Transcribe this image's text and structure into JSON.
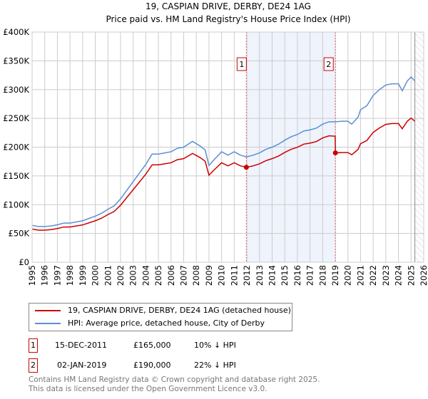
{
  "chart_data": {
    "type": "line",
    "title": "19, CASPIAN DRIVE, DERBY, DE24 1AG",
    "subtitle": "Price paid vs. HM Land Registry's House Price Index (HPI)",
    "xlim": [
      1995,
      2026
    ],
    "ylim": [
      0,
      400000
    ],
    "x_ticks": [
      "1995",
      "1996",
      "1997",
      "1998",
      "1999",
      "2000",
      "2001",
      "2002",
      "2003",
      "2004",
      "2005",
      "2006",
      "2007",
      "2008",
      "2009",
      "2010",
      "2011",
      "2012",
      "2013",
      "2014",
      "2015",
      "2016",
      "2017",
      "2018",
      "2019",
      "2020",
      "2021",
      "2022",
      "2023",
      "2024",
      "2025",
      "2026"
    ],
    "y_ticks": [
      "£0",
      "£50K",
      "£100K",
      "£150K",
      "£200K",
      "£250K",
      "£300K",
      "£350K",
      "£400K"
    ],
    "grid": true,
    "forecast_hatch_from": 2025.3,
    "shaded_range": [
      2011.96,
      2019.0
    ],
    "series": [
      {
        "name": "19, CASPIAN DRIVE, DERBY, DE24 1AG (detached house)",
        "color": "#cc0000",
        "x": [
          1995,
          1995.5,
          1996,
          1996.5,
          1997,
          1997.5,
          1998,
          1998.5,
          1999,
          1999.5,
          2000,
          2000.5,
          2001,
          2001.5,
          2002,
          2002.5,
          2003,
          2003.5,
          2004,
          2004.5,
          2005,
          2005.5,
          2006,
          2006.5,
          2007,
          2007.7,
          2008.3,
          2008.7,
          2009,
          2009.4,
          2010,
          2010.5,
          2011,
          2011.5,
          2011.96,
          2012.5,
          2013,
          2013.5,
          2014,
          2014.5,
          2015,
          2015.5,
          2016,
          2016.5,
          2017,
          2017.5,
          2018,
          2018.5,
          2018.99,
          2019.01,
          2019.5,
          2020,
          2020.3,
          2020.8,
          2021,
          2021.5,
          2022,
          2022.5,
          2023,
          2023.5,
          2024,
          2024.3,
          2024.7,
          2025,
          2025.3
        ],
        "y": [
          57.6,
          55.8,
          55.8,
          56.7,
          58.5,
          61.2,
          61.2,
          63,
          64.8,
          68.4,
          72,
          76.5,
          82.8,
          88.2,
          99,
          112.5,
          126,
          139.5,
          153,
          169.2,
          169.2,
          171,
          172.8,
          178.2,
          180,
          189,
          181.8,
          175.5,
          151.2,
          160.2,
          172.8,
          167.4,
          172.8,
          167.4,
          165,
          167.4,
          171,
          176.4,
          180,
          184.5,
          190.8,
          196.2,
          199.8,
          205.2,
          207,
          209.7,
          216,
          219.6,
          219,
          190,
          190.6,
          190.6,
          186.7,
          196,
          206,
          211.6,
          225.6,
          233.4,
          239.6,
          241,
          241,
          232,
          245,
          250.5,
          245
        ],
        "y_units": "£K"
      },
      {
        "name": "HPI: Average price, detached house, City of Derby",
        "color": "#5b8fd4",
        "x": [
          1995,
          1995.5,
          1996,
          1996.5,
          1997,
          1997.5,
          1998,
          1998.5,
          1999,
          1999.5,
          2000,
          2000.5,
          2001,
          2001.5,
          2002,
          2002.5,
          2003,
          2003.5,
          2004,
          2004.5,
          2005,
          2005.5,
          2006,
          2006.5,
          2007,
          2007.7,
          2008.3,
          2008.7,
          2009,
          2009.4,
          2010,
          2010.5,
          2011,
          2011.5,
          2011.96,
          2012.5,
          2013,
          2013.5,
          2014,
          2014.5,
          2015,
          2015.5,
          2016,
          2016.5,
          2017,
          2017.5,
          2018,
          2018.5,
          2019,
          2019.5,
          2020,
          2020.3,
          2020.8,
          2021,
          2021.5,
          2022,
          2022.5,
          2023,
          2023.5,
          2024,
          2024.3,
          2024.7,
          2025,
          2025.3
        ],
        "y": [
          64,
          62,
          62,
          63,
          65,
          68,
          68,
          70,
          72,
          76,
          80,
          85,
          92,
          98,
          110,
          125,
          140,
          155,
          170,
          188,
          188,
          190,
          192,
          198,
          200,
          210,
          202,
          195,
          168,
          178,
          192,
          186,
          192,
          186,
          183,
          186,
          190,
          196,
          200,
          205,
          212,
          218,
          222,
          228,
          230,
          233,
          240,
          244,
          244,
          245,
          245,
          240,
          252,
          265,
          272,
          290,
          300,
          308,
          310,
          310,
          298,
          315,
          322,
          315
        ],
        "y_units": "£K"
      }
    ],
    "sales": [
      {
        "label": "1",
        "x": 2011.96,
        "price": 165,
        "date": "15-DEC-2011",
        "price_text": "£165,000",
        "delta": "10% ↓ HPI"
      },
      {
        "label": "2",
        "x": 2019.01,
        "price": 190,
        "date": "02-JAN-2019",
        "price_text": "£190,000",
        "delta": "22% ↓ HPI"
      }
    ]
  },
  "footer": {
    "line1": "Contains HM Land Registry data © Crown copyright and database right 2025.",
    "line2": "This data is licensed under the Open Government Licence v3.0."
  }
}
